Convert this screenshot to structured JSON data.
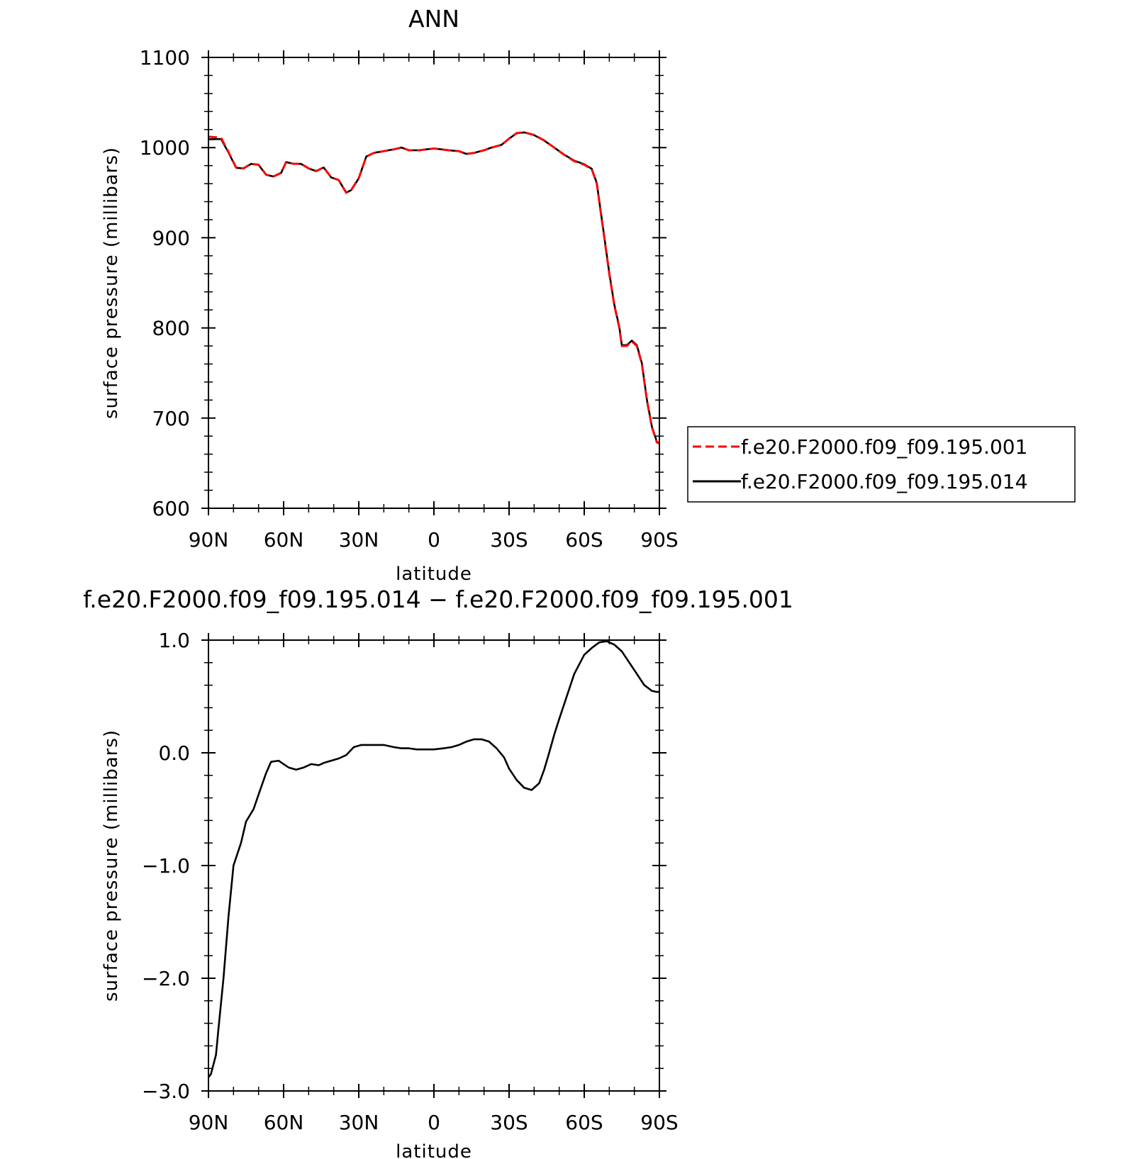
{
  "chart_data": [
    {
      "type": "line",
      "title": "ANN",
      "xlabel": "latitude",
      "ylabel": "surface pressure (millibars)",
      "xlim": [
        90,
        -90
      ],
      "ylim": [
        600,
        1100
      ],
      "xticks": [
        "90N",
        "60N",
        "30N",
        "0",
        "30S",
        "60S",
        "90S"
      ],
      "yticks": [
        "1100",
        "1000",
        "900",
        "800",
        "700",
        "600"
      ],
      "legend": {
        "position": "right",
        "entries": [
          "f.e20.F2000.f09_f09.195.001",
          "f.e20.F2000.f09_f09.195.014"
        ]
      },
      "series": [
        {
          "name": "f.e20.F2000.f09_f09.195.001",
          "color": "#ff0000",
          "dash": "dashed",
          "x": [
            90,
            85,
            82,
            79,
            76,
            73,
            70,
            67,
            64,
            61,
            59,
            56,
            53,
            50,
            47,
            44,
            41,
            38,
            35,
            33,
            30,
            27,
            24,
            20,
            16,
            13,
            10,
            6,
            3,
            0,
            -3,
            -6,
            -10,
            -13,
            -16,
            -20,
            -23,
            -27,
            -30,
            -33,
            -36,
            -40,
            -44,
            -48,
            -52,
            -56,
            -60,
            -63,
            -65,
            -66,
            -68,
            -70,
            -72,
            -74,
            -75,
            -77,
            -79,
            -81,
            -83,
            -85,
            -87,
            -89,
            -90
          ],
          "y": [
            1012,
            1011,
            995,
            978,
            977,
            982,
            981,
            970,
            968,
            972,
            984,
            982,
            982,
            977,
            974,
            978,
            967,
            964,
            950,
            953,
            966,
            990,
            994,
            996,
            998,
            1000,
            997,
            997,
            998,
            999,
            998,
            997,
            996,
            993,
            994,
            997,
            1000,
            1003,
            1010,
            1016,
            1017,
            1014,
            1008,
            1000,
            992,
            985,
            981,
            976,
            960,
            940,
            900,
            860,
            825,
            800,
            780,
            780,
            785,
            780,
            760,
            720,
            690,
            673,
            672
          ]
        },
        {
          "name": "f.e20.F2000.f09_f09.195.014",
          "color": "#000000",
          "dash": "solid",
          "x": [
            90,
            85,
            82,
            79,
            76,
            73,
            70,
            67,
            64,
            61,
            59,
            56,
            53,
            50,
            47,
            44,
            41,
            38,
            35,
            33,
            30,
            27,
            24,
            20,
            16,
            13,
            10,
            6,
            3,
            0,
            -3,
            -6,
            -10,
            -13,
            -16,
            -20,
            -23,
            -27,
            -30,
            -33,
            -36,
            -40,
            -44,
            -48,
            -52,
            -56,
            -60,
            -63,
            -65,
            -66,
            -68,
            -70,
            -72,
            -74,
            -75,
            -77,
            -79,
            -81,
            -83,
            -85,
            -87,
            -89,
            -90
          ],
          "y": [
            1009.1,
            1009.5,
            994.5,
            977.7,
            976.8,
            981.9,
            980.8,
            969.8,
            967.9,
            971.9,
            983.9,
            981.9,
            981.9,
            976.9,
            973.9,
            977.9,
            966.9,
            963.9,
            949.9,
            952.9,
            965.9,
            990.1,
            994.1,
            996.1,
            998.1,
            1000.1,
            997,
            997,
            998,
            999,
            998,
            997,
            996,
            993,
            994.1,
            997.1,
            1000.1,
            1003.1,
            1009.9,
            1015.8,
            1016.8,
            1013.8,
            1007.8,
            1000,
            992.2,
            985.5,
            981.5,
            976.5,
            960.7,
            940.7,
            900.8,
            860.9,
            825.9,
            800.9,
            781,
            781,
            785.9,
            780.9,
            760.8,
            720.7,
            690.6,
            673.6,
            672.6
          ]
        }
      ]
    },
    {
      "type": "line",
      "title": "f.e20.F2000.f09_f09.195.014 − f.e20.F2000.f09_f09.195.001",
      "xlabel": "latitude",
      "ylabel": "surface pressure (millibars)",
      "xlim": [
        90,
        -90
      ],
      "ylim": [
        -3.0,
        1.0
      ],
      "xticks": [
        "90N",
        "60N",
        "30N",
        "0",
        "30S",
        "60S",
        "90S"
      ],
      "yticks": [
        "1.0",
        "0.0",
        "−1.0",
        "−2.0",
        "−3.0"
      ],
      "series": [
        {
          "color": "#000000",
          "dash": "solid",
          "x": [
            90,
            89,
            87,
            86,
            84,
            82,
            80,
            77,
            75,
            72,
            70,
            67,
            65,
            62,
            60,
            58,
            55,
            52,
            49,
            46,
            44,
            41,
            38,
            35,
            32,
            29,
            26,
            23,
            20,
            16,
            13,
            10,
            7,
            4,
            0,
            -4,
            -7,
            -10,
            -13,
            -16,
            -19,
            -22,
            -25,
            -28,
            -30,
            -33,
            -36,
            -39,
            -42,
            -44,
            -46,
            -48,
            -50,
            -53,
            -56,
            -60,
            -63,
            -66,
            -69,
            -72,
            -75,
            -78,
            -81,
            -84,
            -87,
            -89,
            -90
          ],
          "y": [
            -2.88,
            -2.85,
            -2.68,
            -2.45,
            -2.0,
            -1.45,
            -1.0,
            -0.8,
            -0.61,
            -0.5,
            -0.37,
            -0.18,
            -0.08,
            -0.07,
            -0.1,
            -0.13,
            -0.15,
            -0.13,
            -0.1,
            -0.11,
            -0.09,
            -0.07,
            -0.05,
            -0.02,
            0.05,
            0.07,
            0.07,
            0.07,
            0.07,
            0.05,
            0.04,
            0.04,
            0.03,
            0.03,
            0.03,
            0.04,
            0.05,
            0.07,
            0.1,
            0.12,
            0.12,
            0.1,
            0.04,
            -0.04,
            -0.14,
            -0.24,
            -0.31,
            -0.33,
            -0.27,
            -0.15,
            0.0,
            0.16,
            0.3,
            0.5,
            0.7,
            0.87,
            0.93,
            0.98,
            0.99,
            0.96,
            0.9,
            0.8,
            0.7,
            0.6,
            0.55,
            0.54,
            0.54
          ]
        }
      ]
    }
  ]
}
